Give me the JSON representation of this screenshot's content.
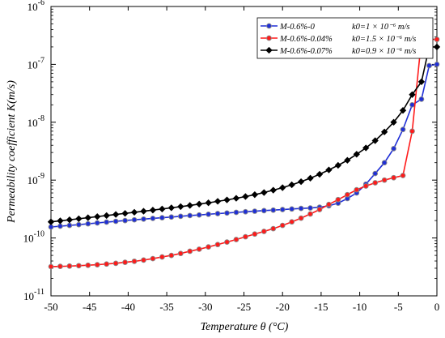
{
  "chart_data": {
    "type": "line",
    "xlabel": "Temperature θ (°C)",
    "ylabel": "Permeability coefficient K(m/s)",
    "xlim": [
      -50,
      0
    ],
    "ylim": [
      1e-11,
      1e-06
    ],
    "yscale": "log",
    "grid": false,
    "legend_position": "top-right",
    "x_ticks": [
      -50,
      -45,
      -40,
      -35,
      -30,
      -25,
      -20,
      -15,
      -10,
      -5,
      0
    ],
    "y_ticks": [
      {
        "value": 1e-11,
        "exp": "-11"
      },
      {
        "value": 1e-10,
        "exp": "-10"
      },
      {
        "value": 1e-09,
        "exp": "-9"
      },
      {
        "value": 1e-08,
        "exp": "-8"
      },
      {
        "value": 1e-07,
        "exp": "-7"
      },
      {
        "value": 1e-06,
        "exp": "-6"
      }
    ],
    "series": [
      {
        "name": "M-0.6%-0",
        "legend_k0": "k0=1 × 10⁻⁶ m/s",
        "color": "#1f2fd6",
        "marker": "circle",
        "x": [
          -50,
          -48.8,
          -47.6,
          -46.4,
          -45.2,
          -44,
          -42.8,
          -41.6,
          -40.4,
          -39.2,
          -38,
          -36.8,
          -35.6,
          -34.4,
          -33.2,
          -32,
          -30.8,
          -29.6,
          -28.4,
          -27.2,
          -26,
          -24.8,
          -23.6,
          -22.4,
          -21.2,
          -20,
          -18.8,
          -17.6,
          -16.4,
          -15.2,
          -14,
          -12.8,
          -11.6,
          -10.4,
          -9.2,
          -8,
          -6.8,
          -5.6,
          -4.4,
          -3.2,
          -2,
          -1,
          0
        ],
        "y": [
          1.55e-10,
          1.6e-10,
          1.65e-10,
          1.7e-10,
          1.76e-10,
          1.82e-10,
          1.88e-10,
          1.94e-10,
          2e-10,
          2.06e-10,
          2.12e-10,
          2.18e-10,
          2.24e-10,
          2.3e-10,
          2.37e-10,
          2.44e-10,
          2.5e-10,
          2.57e-10,
          2.64e-10,
          2.7e-10,
          2.77e-10,
          2.84e-10,
          2.9e-10,
          2.97e-10,
          3.03e-10,
          3.1e-10,
          3.17e-10,
          3.24e-10,
          3.3e-10,
          3.4e-10,
          3.6e-10,
          4e-10,
          4.8e-10,
          6e-10,
          8.5e-10,
          1.3e-09,
          2e-09,
          3.5e-09,
          7.5e-09,
          2e-08,
          2.5e-08,
          9.5e-08,
          1e-07
        ]
      },
      {
        "name": "M-0.6%-0.04%",
        "legend_k0": "k0=1.5 × 10⁻⁶ m/s",
        "color": "#ff1a1a",
        "marker": "circle",
        "x": [
          -50,
          -48.8,
          -47.6,
          -46.4,
          -45.2,
          -44,
          -42.8,
          -41.6,
          -40.4,
          -39.2,
          -38,
          -36.8,
          -35.6,
          -34.4,
          -33.2,
          -32,
          -30.8,
          -29.6,
          -28.4,
          -27.2,
          -26,
          -24.8,
          -23.6,
          -22.4,
          -21.2,
          -20,
          -18.8,
          -17.6,
          -16.4,
          -15.2,
          -14,
          -12.8,
          -11.6,
          -10.4,
          -9.2,
          -8,
          -6.8,
          -5.6,
          -4.4,
          -3.2,
          -2,
          -1,
          0
        ],
        "y": [
          3.2e-11,
          3.23e-11,
          3.27e-11,
          3.32e-11,
          3.38e-11,
          3.45e-11,
          3.55e-11,
          3.65e-11,
          3.8e-11,
          3.95e-11,
          4.15e-11,
          4.4e-11,
          4.7e-11,
          5e-11,
          5.4e-11,
          5.9e-11,
          6.4e-11,
          7e-11,
          7.7e-11,
          8.5e-11,
          9.4e-11,
          1.05e-10,
          1.17e-10,
          1.3e-10,
          1.45e-10,
          1.65e-10,
          1.9e-10,
          2.2e-10,
          2.6e-10,
          3.1e-10,
          3.8e-10,
          4.6e-10,
          5.6e-10,
          6.8e-10,
          7.9e-10,
          9e-10,
          1e-09,
          1.1e-09,
          1.2e-09,
          7e-09,
          2.7e-07,
          2.7e-07,
          2.7e-07
        ]
      },
      {
        "name": "M-0.6%-0.07%",
        "legend_k0": "k0=0.9 × 10⁻⁶ m/s",
        "color": "#000000",
        "marker": "diamond",
        "x": [
          -50,
          -48.8,
          -47.6,
          -46.4,
          -45.2,
          -44,
          -42.8,
          -41.6,
          -40.4,
          -39.2,
          -38,
          -36.8,
          -35.6,
          -34.4,
          -33.2,
          -32,
          -30.8,
          -29.6,
          -28.4,
          -27.2,
          -26,
          -24.8,
          -23.6,
          -22.4,
          -21.2,
          -20,
          -18.8,
          -17.6,
          -16.4,
          -15.2,
          -14,
          -12.8,
          -11.6,
          -10.4,
          -9.2,
          -8,
          -6.8,
          -5.6,
          -4.4,
          -3.2,
          -2,
          -1,
          0
        ],
        "y": [
          1.9e-10,
          1.98e-10,
          2.06e-10,
          2.15e-10,
          2.24e-10,
          2.34e-10,
          2.44e-10,
          2.55e-10,
          2.66e-10,
          2.78e-10,
          2.9e-10,
          3.03e-10,
          3.17e-10,
          3.32e-10,
          3.48e-10,
          3.65e-10,
          3.85e-10,
          4.05e-10,
          4.3e-10,
          4.55e-10,
          4.85e-10,
          5.2e-10,
          5.6e-10,
          6.1e-10,
          6.7e-10,
          7.4e-10,
          8.3e-10,
          9.4e-10,
          1.08e-09,
          1.26e-09,
          1.5e-09,
          1.8e-09,
          2.2e-09,
          2.8e-09,
          3.6e-09,
          4.8e-09,
          6.8e-09,
          1e-08,
          1.6e-08,
          3e-08,
          5e-08,
          2e-07,
          2e-07
        ]
      }
    ]
  }
}
